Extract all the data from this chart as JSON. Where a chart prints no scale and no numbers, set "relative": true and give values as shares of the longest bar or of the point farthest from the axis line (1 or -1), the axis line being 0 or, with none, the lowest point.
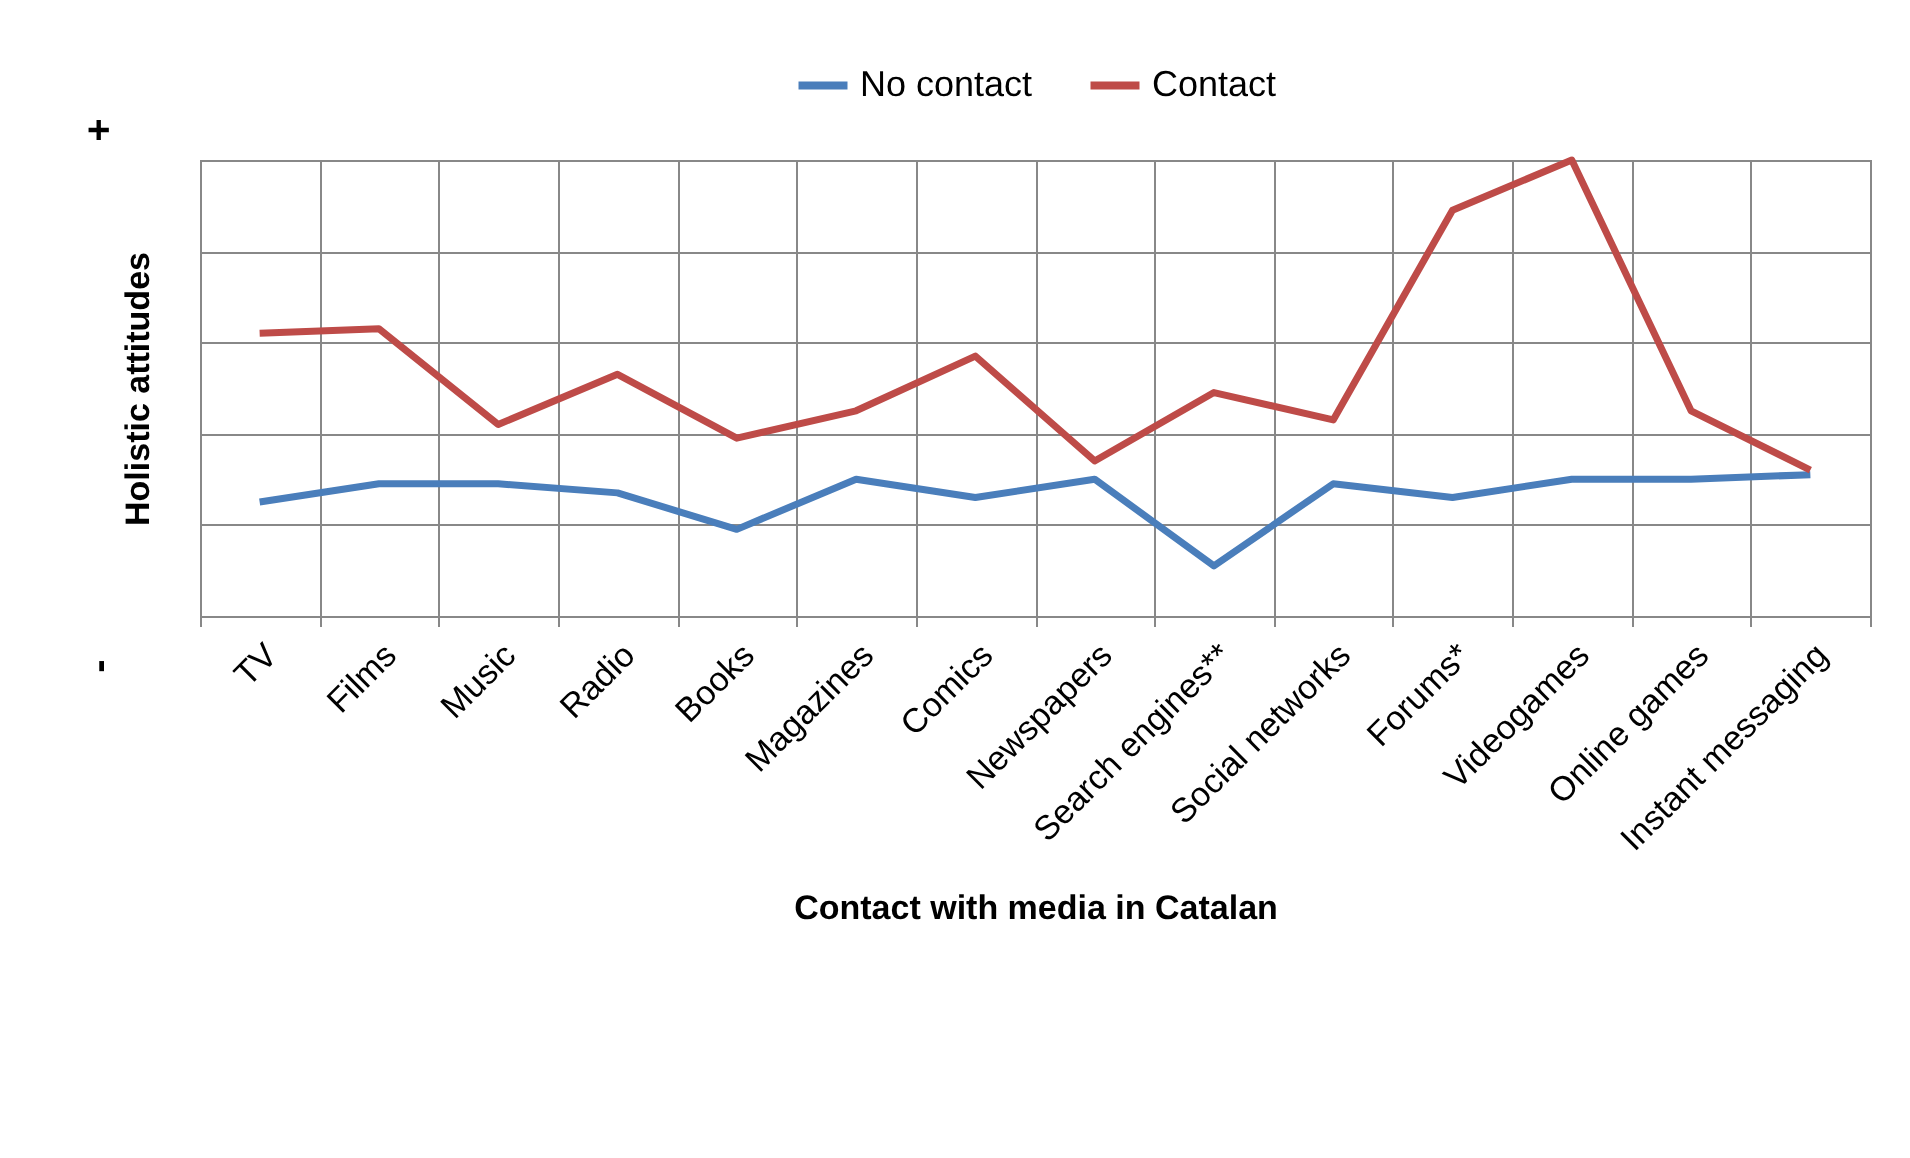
{
  "chart_data": {
    "type": "line",
    "relative": true,
    "xlabel": "Contact with media in Catalan",
    "ylabel": "Holistic attitudes",
    "annotations": [
      "-",
      "+"
    ],
    "categories": [
      "TV",
      "Films",
      "Music",
      "Radio",
      "Books",
      "Magazines",
      "Comics",
      "Newspapers",
      "Search engines**",
      "Social networks",
      "Forums*",
      "Videogames",
      "Online games",
      "Instant messaging"
    ],
    "series": [
      {
        "name": "No contact",
        "color": "#4a7ebb",
        "values": [
          0.25,
          0.29,
          0.29,
          0.27,
          0.19,
          0.3,
          0.26,
          0.3,
          0.11,
          0.29,
          0.26,
          0.3,
          0.3,
          0.31
        ]
      },
      {
        "name": "Contact",
        "color": "#be4b48",
        "values": [
          0.62,
          0.63,
          0.42,
          0.53,
          0.39,
          0.45,
          0.57,
          0.34,
          0.49,
          0.43,
          0.89,
          1.0,
          0.45,
          0.32
        ]
      }
    ],
    "grid": true,
    "legend": "top",
    "marker": "none",
    "line_style": "solid"
  }
}
